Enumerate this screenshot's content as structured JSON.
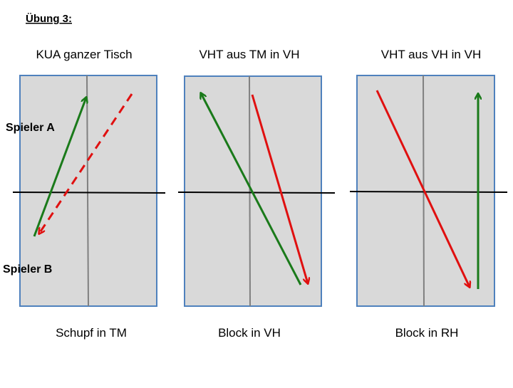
{
  "header": {
    "title": "Übung 3:"
  },
  "labels": {
    "player_a": "Spieler A",
    "player_b": "Spieler B"
  },
  "panels": [
    {
      "title": "KUA ganzer Tisch",
      "caption": "Schupf in TM"
    },
    {
      "title": "VHT aus TM in VH",
      "caption": "Block in VH"
    },
    {
      "title": "VHT aus VH in VH",
      "caption": "Block in RH"
    }
  ]
}
